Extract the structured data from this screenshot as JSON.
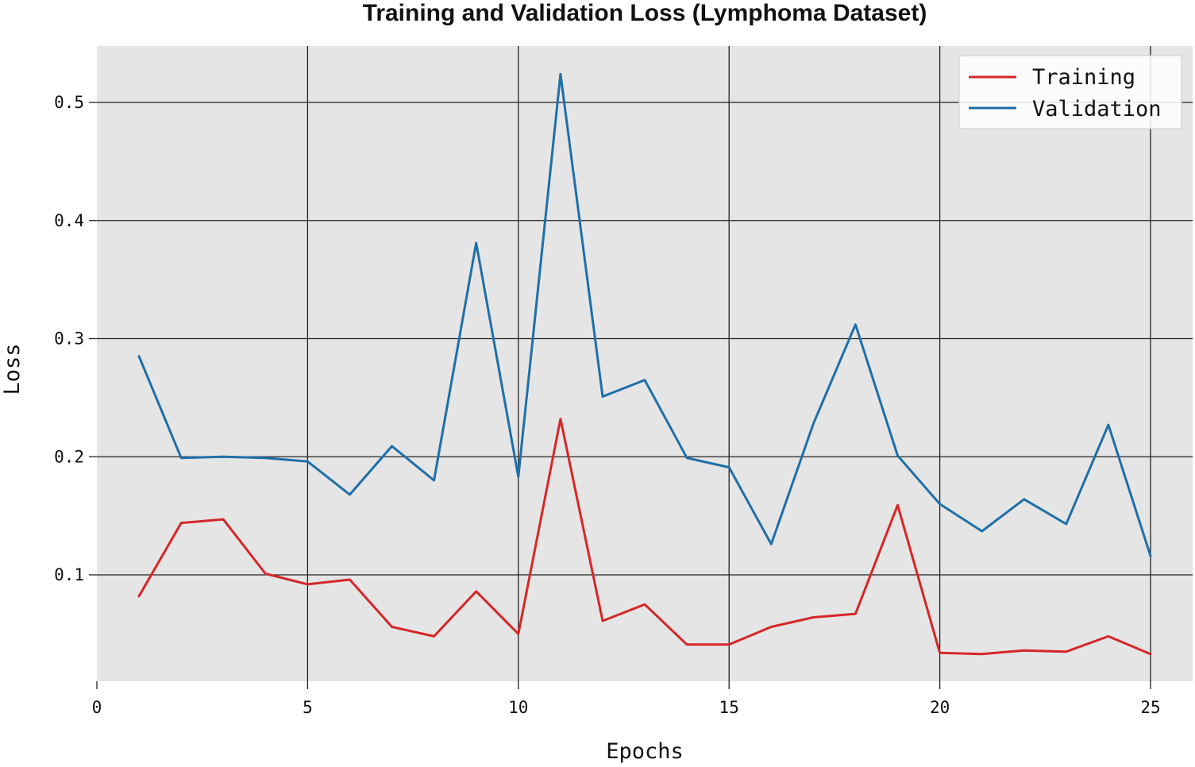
{
  "chart_data": {
    "type": "line",
    "title": "Training and Validation Loss (Lymphoma Dataset)",
    "xlabel": "Epochs",
    "ylabel": "Loss",
    "xlim": [
      0,
      25
    ],
    "ylim": [
      0,
      0.5
    ],
    "x_ticks": [
      "0",
      "5",
      "10",
      "15",
      "20",
      "25"
    ],
    "y_ticks": [
      "0.1",
      "0.2",
      "0.3",
      "0.4",
      "0.5"
    ],
    "x_tick_values": [
      0,
      5,
      10,
      15,
      20,
      25
    ],
    "y_tick_values": [
      0.1,
      0.2,
      0.3,
      0.4,
      0.5
    ],
    "grid": true,
    "legend_position": "top-right",
    "background": "#e5e5e5",
    "x": [
      1,
      2,
      3,
      4,
      5,
      6,
      7,
      8,
      9,
      10,
      11,
      12,
      13,
      14,
      15,
      16,
      17,
      18,
      19,
      20,
      21,
      22,
      23,
      24,
      25
    ],
    "series": [
      {
        "name": "Training",
        "color": "#d62728",
        "values": [
          0.082,
          0.144,
          0.147,
          0.101,
          0.092,
          0.096,
          0.056,
          0.048,
          0.086,
          0.05,
          0.232,
          0.061,
          0.075,
          0.041,
          0.041,
          0.056,
          0.064,
          0.067,
          0.159,
          0.034,
          0.033,
          0.036,
          0.035,
          0.048,
          0.033
        ]
      },
      {
        "name": "Validation",
        "color": "#1f6fa8",
        "values": [
          0.285,
          0.199,
          0.2,
          0.199,
          0.196,
          0.168,
          0.209,
          0.18,
          0.381,
          0.183,
          0.524,
          0.251,
          0.265,
          0.199,
          0.191,
          0.126,
          0.228,
          0.312,
          0.201,
          0.16,
          0.137,
          0.164,
          0.143,
          0.227,
          0.116
        ]
      }
    ]
  }
}
